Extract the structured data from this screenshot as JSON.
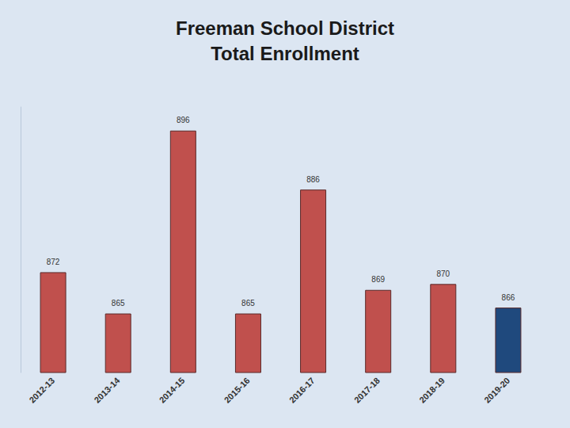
{
  "chart_data": {
    "type": "bar",
    "title": "Freeman School District\nTotal Enrollment",
    "categories": [
      "2012-13",
      "2013-14",
      "2014-15",
      "2015-16",
      "2016-17",
      "2017-18",
      "2018-19",
      "2019-20"
    ],
    "values": [
      872,
      865,
      896,
      865,
      886,
      869,
      870,
      866
    ],
    "colors": [
      "#c0504d",
      "#c0504d",
      "#c0504d",
      "#c0504d",
      "#c0504d",
      "#c0504d",
      "#c0504d",
      "#1f497d"
    ],
    "ylim": [
      855,
      900
    ],
    "grid": false,
    "data_labels": true,
    "tick_labels": "x"
  }
}
